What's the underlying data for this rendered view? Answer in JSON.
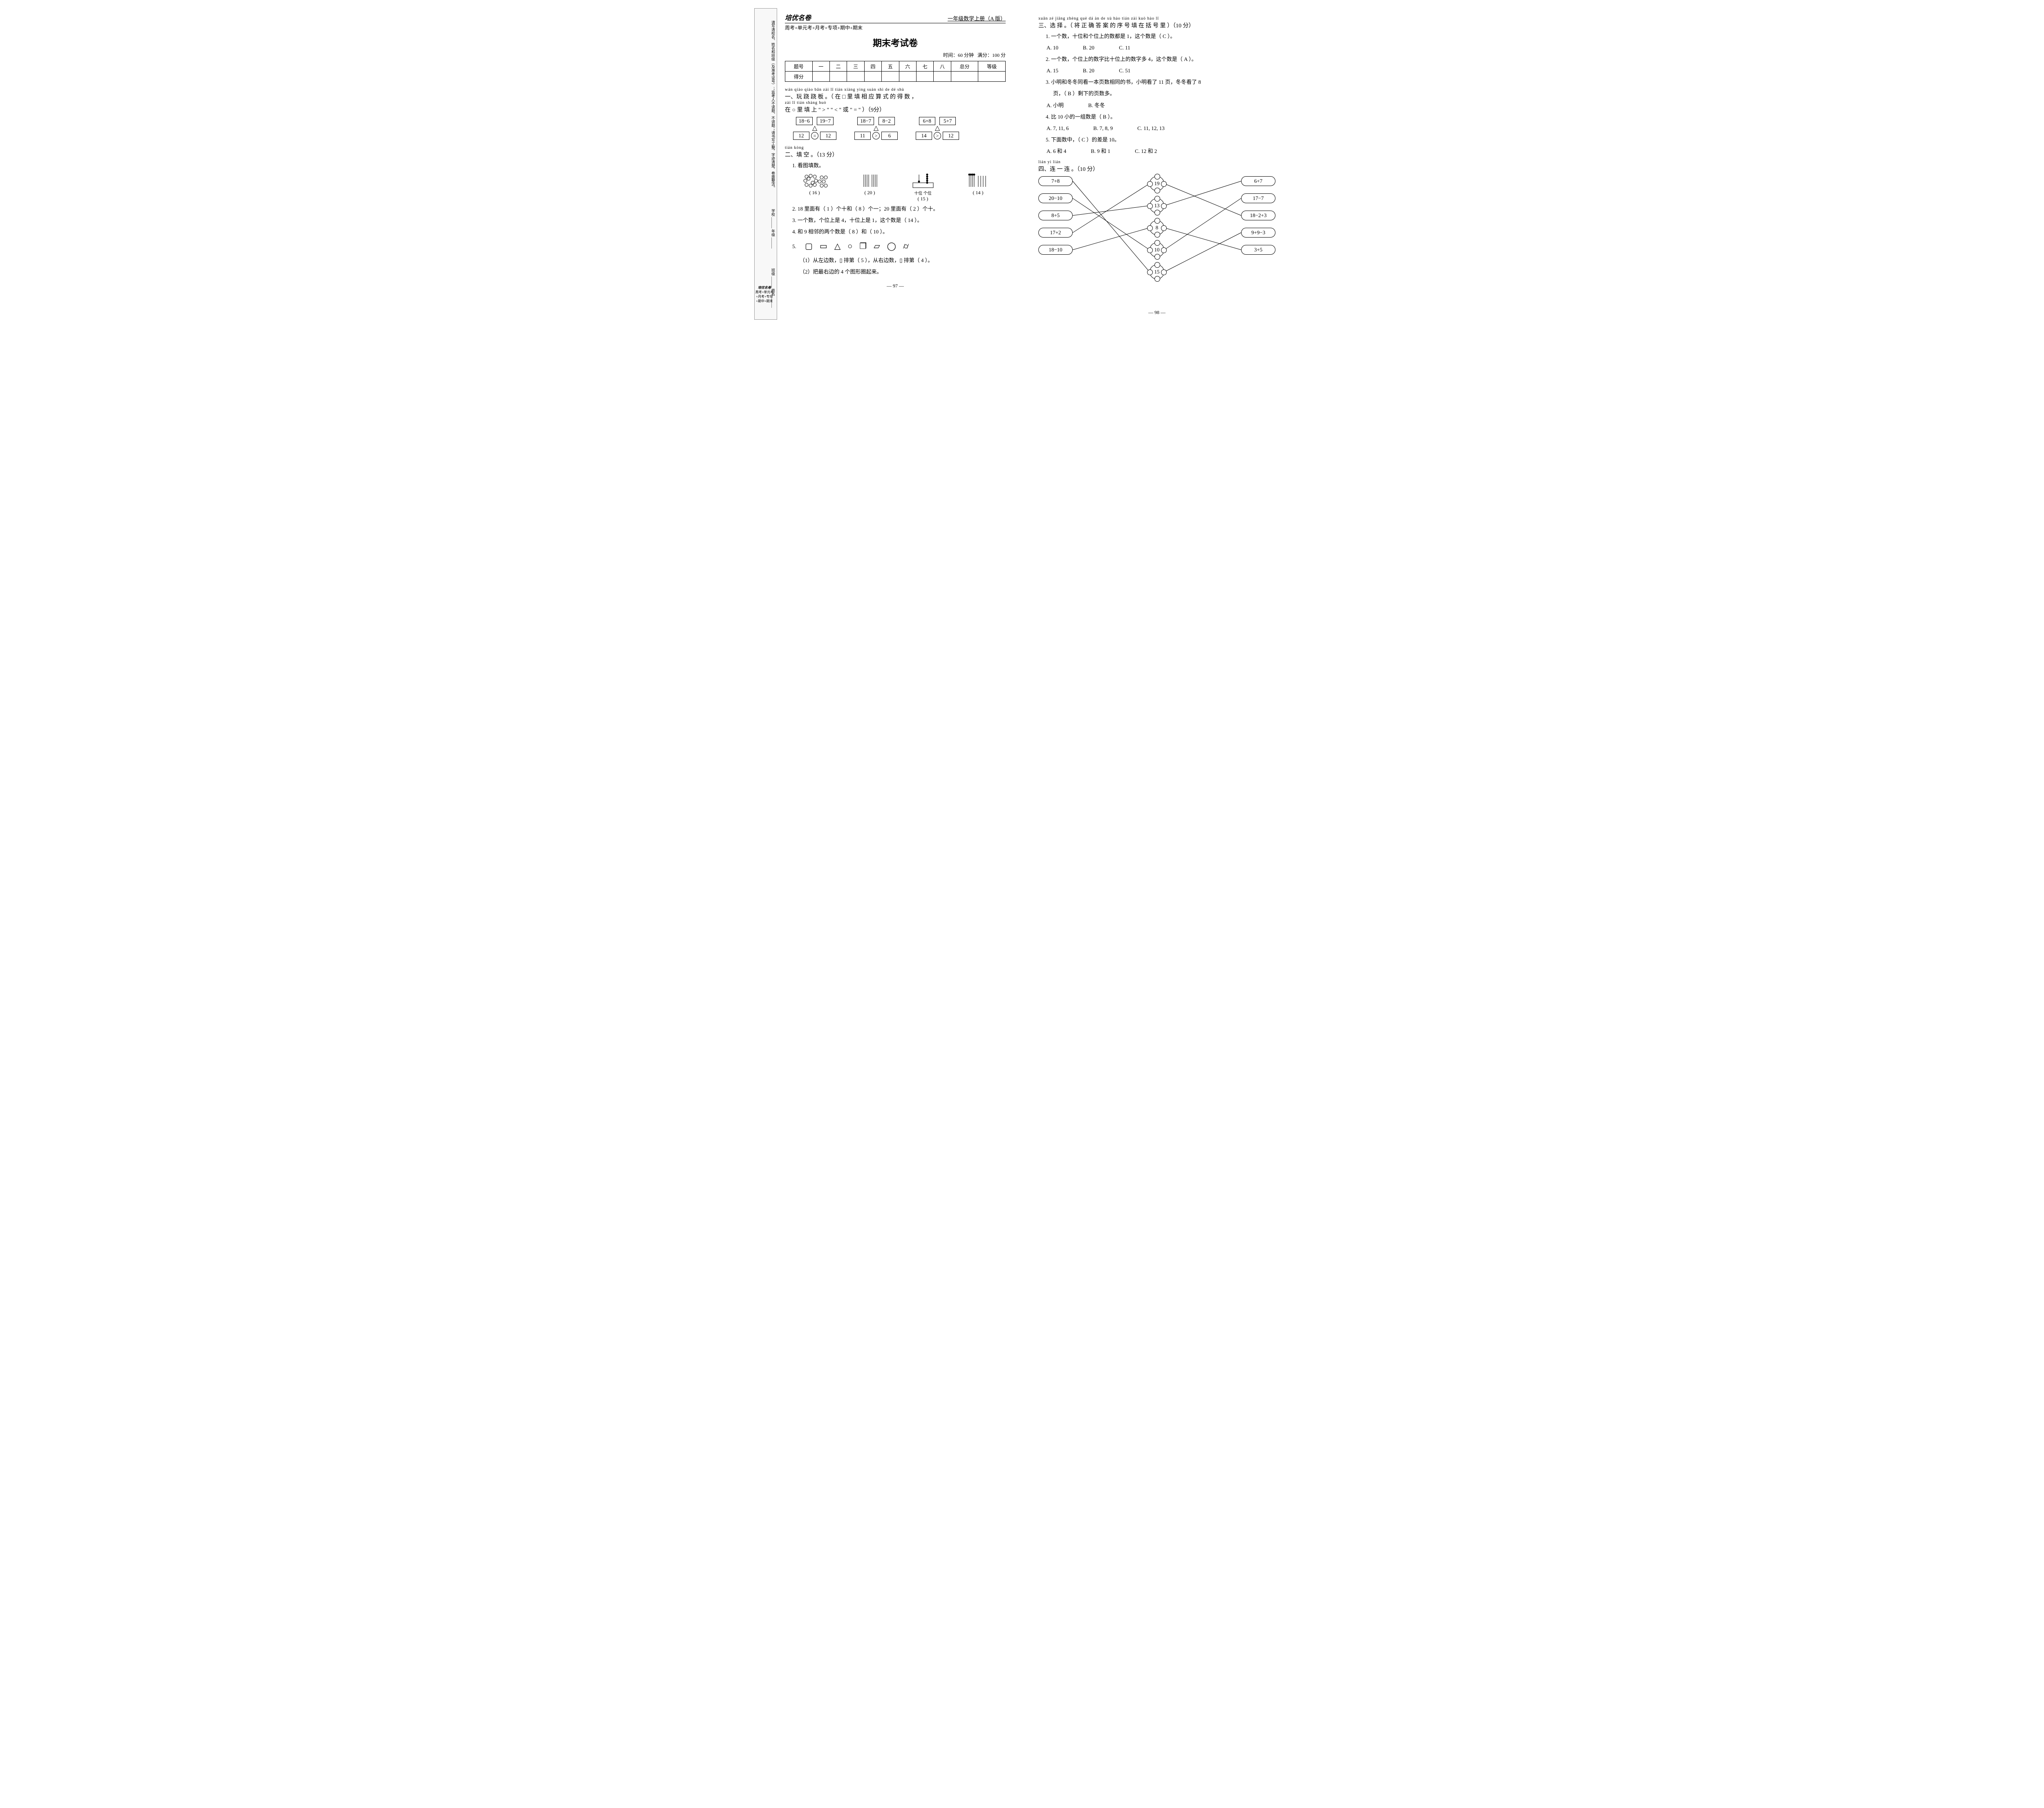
{
  "header": {
    "logo": "培优名卷",
    "grade": "一年级数学上册（A 版）",
    "subhead": "周考+单元考+月考+专项+期中+期末",
    "title": "期末考试卷",
    "time": "时间：60 分钟",
    "full": "满分：100 分"
  },
  "score_table": {
    "row1": [
      "题号",
      "一",
      "二",
      "三",
      "四",
      "五",
      "六",
      "七",
      "八",
      "总分",
      "等级"
    ],
    "row2_label": "得分"
  },
  "sec1": {
    "pinyin1": "wán qiào qiào bǎn        zài        lǐ tián xiàng yìng suàn shì de dé shù",
    "line1": "一、玩 跷 跷 板 。（ 在 □ 里 填 相 应 算 式 的 得 数 ，",
    "pinyin2": "zài       lǐ tián shàng                   huò",
    "line2": "在 ○ 里 填 上 \" > \" \" < \" 或 \" = \" ）（9分）",
    "seesaws": [
      {
        "a": "18−6",
        "b": "19−7",
        "ra": "12",
        "cmp": "=",
        "rb": "12"
      },
      {
        "a": "18−7",
        "b": "8−2",
        "ra": "11",
        "cmp": ">",
        "rb": "6"
      },
      {
        "a": "6+8",
        "b": "5+7",
        "ra": "14",
        "cmp": ">",
        "rb": "12"
      }
    ]
  },
  "sec2": {
    "pinyin": "tián kòng",
    "head": "二、填 空 。（13 分）",
    "q1_label": "1. 看图填数。",
    "q1_vals": [
      "( 16 )",
      "( 20 )",
      "( 15 )",
      "( 14 )"
    ],
    "q1_abacus_label": "十位 个位",
    "q2": "2. 18 里面有（ 1 ）个十和（ 8 ）个一；20 里面有（ 2 ）个十。",
    "q3": "3. 一个数，个位上是 4，十位上是 1，这个数是（ 14 ）。",
    "q4": "4. 和 9 相邻的两个数是（ 8 ）和（ 10 ）。",
    "q5_label": "5.",
    "q5_1": "（1）从左边数，▯ 排第（ 5 ），从右边数，▯ 排第（ 4 ）。",
    "q5_2": "（2）把最右边的 4 个图形圈起来。"
  },
  "sec3": {
    "pinyin": "xuǎn zé        jiāng zhèng què dá àn de xù hào tián zài kuò hào lǐ",
    "head": "三、选 择 。（ 将 正 确 答 案 的 序 号 填 在 括 号 里 ）（10 分）",
    "q1": "1. 一个数，十位和个位上的数都是 1，这个数是（ C ）。",
    "q1o": [
      "A. 10",
      "B. 20",
      "C. 11"
    ],
    "q2": "2. 一个数，个位上的数字比十位上的数字多 4，这个数是（ A ）。",
    "q2o": [
      "A. 15",
      "B. 20",
      "C. 51"
    ],
    "q3a": "3. 小明和冬冬同看一本页数相同的书，小明看了 11 页，冬冬看了 8",
    "q3b": "页，（ B ）剩下的页数多。",
    "q3o": [
      "A. 小明",
      "B. 冬冬"
    ],
    "q4": "4. 比 10 小的一组数是（ B ）。",
    "q4o": [
      "A. 7, 11, 6",
      "B. 7, 8, 9",
      "C. 11, 12, 13"
    ],
    "q5": "5. 下面数中，（ C ）的差是 10。",
    "q5o": [
      "A. 6 和 4",
      "B. 9 和 1",
      "C. 12 和 2"
    ]
  },
  "sec4": {
    "pinyin": "lián yì lián",
    "head": "四、连 一 连 。（10 分）",
    "left": [
      "7+8",
      "20−10",
      "8+5",
      "17+2",
      "18−10"
    ],
    "mid": [
      "19",
      "13",
      "8",
      "10",
      "15"
    ],
    "right": [
      "6+7",
      "17−7",
      "18−2+3",
      "9+9−3",
      "3+5"
    ],
    "left_to_mid": [
      [
        0,
        4
      ],
      [
        1,
        3
      ],
      [
        2,
        1
      ],
      [
        3,
        0
      ],
      [
        4,
        2
      ]
    ],
    "right_to_mid": [
      [
        0,
        1
      ],
      [
        1,
        3
      ],
      [
        2,
        0
      ],
      [
        3,
        4
      ],
      [
        4,
        2
      ]
    ]
  },
  "pages": {
    "left": "— 97 —",
    "right": "— 98 —"
  },
  "side": {
    "fields": [
      "学校 ______  年级 ______",
      "班级 ______  姓名 ______"
    ],
    "notes": "请写清校名、姓名和班级（及准考证号）；监考人不读题、不讲题；请书写工整，字迹清楚，卷面整洁。",
    "brand": "培优名卷",
    "brand_sub": "周考+单元考+月考+专项+期中+期末"
  },
  "colors": {
    "fg": "#000000",
    "bg": "#ffffff",
    "border": "#000000"
  }
}
